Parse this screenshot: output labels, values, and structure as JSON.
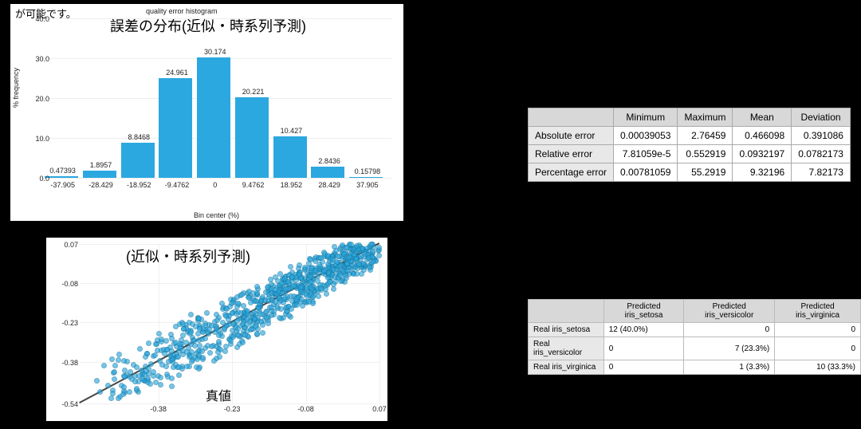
{
  "histogram": {
    "type": "histogram",
    "top_text": "が可能です。",
    "small_title": "quality error histogram",
    "jp_title": "誤差の分布(近似・時系列予測)",
    "xlabel": "Bin center (%)",
    "ylabel": "% frequency",
    "bar_color": "#2ca8e0",
    "background_color": "#ffffff",
    "grid_color": "#eeeeee",
    "ylim": [
      0,
      40
    ],
    "ytick_step": 10,
    "categories": [
      "-37.905",
      "-28.429",
      "-18.952",
      "-9.4762",
      "0",
      "9.4762",
      "18.952",
      "28.429",
      "37.905"
    ],
    "values": [
      0.47393,
      1.8957,
      8.8468,
      24.961,
      30.174,
      20.221,
      10.427,
      2.8436,
      0.15798
    ],
    "value_labels": [
      "0.47393",
      "1.8957",
      "8.8468",
      "24.961",
      "30.174",
      "20.221",
      "10.427",
      "2.8436",
      "0.15798"
    ]
  },
  "scatter": {
    "type": "scatter",
    "jp_title": "(近似・時系列予測)",
    "truth_label": "真値",
    "xlim": [
      -0.54,
      0.07
    ],
    "ylim": [
      -0.54,
      0.07
    ],
    "xticks": [
      "-0.38",
      "-0.23",
      "-0.08",
      "0.07"
    ],
    "yticks": [
      "0.07",
      "-0.08",
      "-0.23",
      "-0.38",
      "-0.54"
    ],
    "point_color": "#2ca8e0",
    "point_border": "#1a7fa8",
    "line_color": "#444444",
    "grid_color": "#f0f0f0",
    "background_color": "#ffffff"
  },
  "error_table": {
    "columns": [
      "",
      "Minimum",
      "Maximum",
      "Mean",
      "Deviation"
    ],
    "rows": [
      [
        "Absolute error",
        "0.00039053",
        "2.76459",
        "0.466098",
        "0.391086"
      ],
      [
        "Relative error",
        "7.81059e-5",
        "0.552919",
        "0.0932197",
        "0.0782173"
      ],
      [
        "Percentage error",
        "0.00781059",
        "55.2919",
        "9.32196",
        "7.82173"
      ]
    ],
    "header_bg": "#d8d8d8",
    "rowheader_bg": "#e8e8e8",
    "border_color": "#999999"
  },
  "confusion_table": {
    "columns": [
      "",
      "Predicted iris_setosa",
      "Predicted iris_versicolor",
      "Predicted iris_virginica"
    ],
    "rows": [
      [
        "Real iris_setosa",
        "12 (40.0%)",
        "0",
        "0"
      ],
      [
        "Real iris_versicolor",
        "0",
        "7 (23.3%)",
        "0"
      ],
      [
        "Real iris_virginica",
        "0",
        "1 (3.3%)",
        "10 (33.3%)"
      ]
    ],
    "header_bg": "#d8d8d8",
    "rowheader_bg": "#e8e8e8",
    "border_color": "#999999"
  }
}
